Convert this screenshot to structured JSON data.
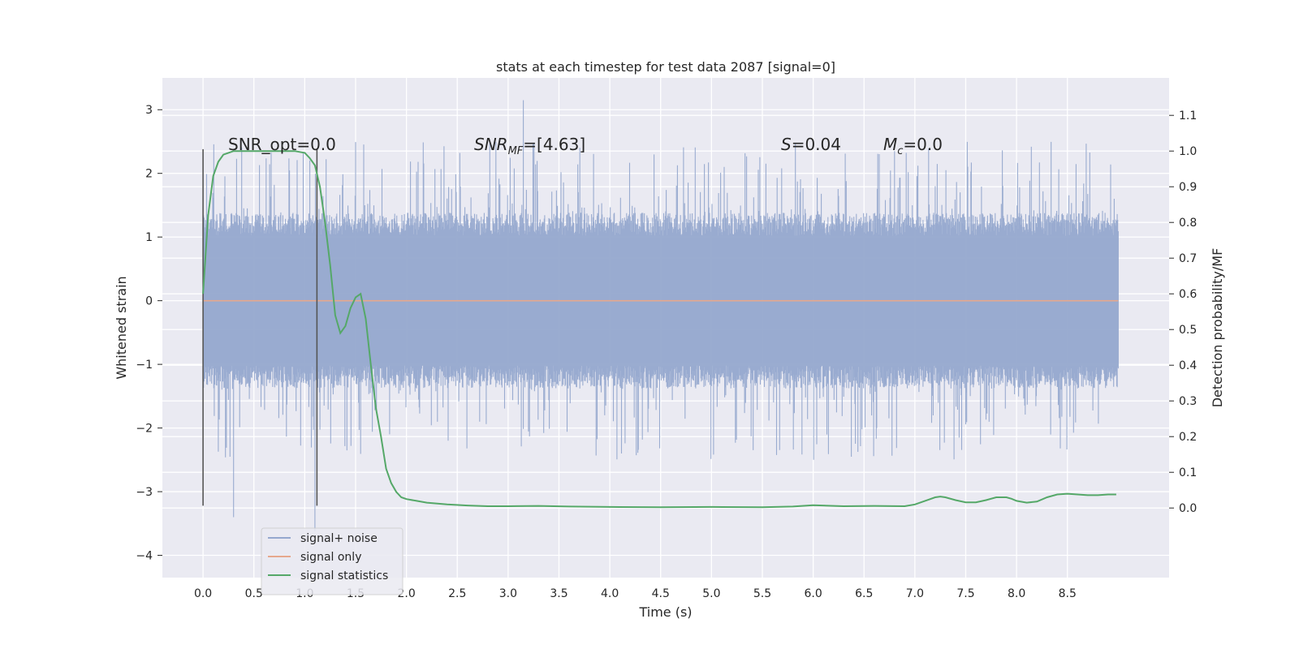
{
  "chart_data": {
    "type": "line",
    "title": "stats at each timestep for test data 2087 [signal=0]",
    "xlabel": "Time (s)",
    "ylabel": "Whitened strain",
    "y2label": "Detection probability/MF",
    "xlim": [
      -0.4,
      9.5
    ],
    "ylim": [
      -4.35,
      3.5
    ],
    "y2lim": [
      -0.195,
      1.205
    ],
    "xticks": [
      0.0,
      0.5,
      1.0,
      1.5,
      2.0,
      2.5,
      3.0,
      3.5,
      4.0,
      4.5,
      5.0,
      5.5,
      6.0,
      6.5,
      7.0,
      7.5,
      8.0,
      8.5
    ],
    "yticks": [
      -4,
      -3,
      -2,
      -1,
      0,
      1,
      2,
      3
    ],
    "y2ticks": [
      0.0,
      0.1,
      0.2,
      0.3,
      0.4,
      0.5,
      0.6,
      0.7,
      0.8,
      0.9,
      1.0,
      1.1
    ],
    "grid": true,
    "legend": {
      "position": "lower-left",
      "entries": [
        {
          "name": "signal+ noise",
          "color": "#95a8ce"
        },
        {
          "name": "signal only",
          "color": "#e6a88d"
        },
        {
          "name": "signal statistics",
          "color": "#55a868"
        }
      ]
    },
    "annotations": {
      "snr_opt": "SNR_opt=0.0",
      "snr_mf_base": "SNR",
      "snr_mf_sub": "MF",
      "snr_mf_value": "=[4.63]",
      "s_sym": "S",
      "s_value": "=0.04",
      "mc_base": "M",
      "mc_sub": "c",
      "mc_value": "=0.0"
    },
    "markers": {
      "x": [
        0.0,
        1.12
      ],
      "ymin": -3.22,
      "ymax": 2.38
    },
    "noise_series": {
      "name": "signal+ noise",
      "x_start": 0.0,
      "x_end": 9.0,
      "band": 1.2,
      "extreme_max": 3.15,
      "extreme_min": -3.62
    },
    "signal_only": {
      "name": "signal only",
      "x": [
        0.0,
        9.0
      ],
      "y": [
        0.0,
        0.0
      ]
    },
    "signal_statistics": {
      "name": "signal statistics",
      "axis": "right",
      "x": [
        0.0,
        0.05,
        0.1,
        0.15,
        0.2,
        0.25,
        0.3,
        0.4,
        0.5,
        0.6,
        0.7,
        0.8,
        0.9,
        1.0,
        1.05,
        1.1,
        1.15,
        1.2,
        1.25,
        1.3,
        1.35,
        1.4,
        1.45,
        1.5,
        1.55,
        1.6,
        1.65,
        1.7,
        1.75,
        1.8,
        1.85,
        1.9,
        1.95,
        2.0,
        2.1,
        2.2,
        2.4,
        2.6,
        2.8,
        3.0,
        3.3,
        3.6,
        4.0,
        4.5,
        5.0,
        5.5,
        5.8,
        6.0,
        6.3,
        6.6,
        6.9,
        7.0,
        7.1,
        7.2,
        7.25,
        7.3,
        7.4,
        7.5,
        7.6,
        7.7,
        7.8,
        7.9,
        7.95,
        8.0,
        8.1,
        8.2,
        8.3,
        8.4,
        8.5,
        8.6,
        8.7,
        8.8,
        8.9,
        8.98
      ],
      "y": [
        0.6,
        0.82,
        0.93,
        0.97,
        0.99,
        0.995,
        1.0,
        1.0,
        1.0,
        1.0,
        1.0,
        1.0,
        1.0,
        0.995,
        0.98,
        0.96,
        0.9,
        0.8,
        0.68,
        0.54,
        0.49,
        0.51,
        0.56,
        0.59,
        0.6,
        0.53,
        0.4,
        0.28,
        0.2,
        0.11,
        0.07,
        0.045,
        0.03,
        0.025,
        0.02,
        0.015,
        0.01,
        0.007,
        0.005,
        0.005,
        0.006,
        0.004,
        0.003,
        0.002,
        0.003,
        0.002,
        0.004,
        0.008,
        0.005,
        0.006,
        0.005,
        0.01,
        0.02,
        0.03,
        0.032,
        0.03,
        0.022,
        0.016,
        0.016,
        0.022,
        0.03,
        0.03,
        0.026,
        0.02,
        0.015,
        0.018,
        0.03,
        0.038,
        0.04,
        0.038,
        0.036,
        0.036,
        0.038,
        0.038
      ]
    }
  }
}
